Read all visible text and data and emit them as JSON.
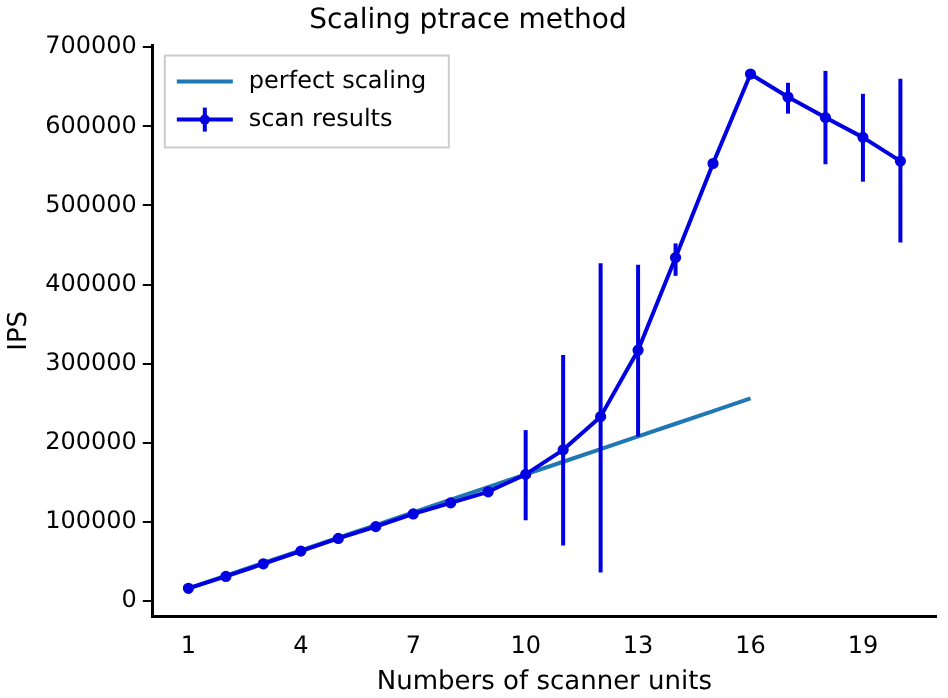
{
  "chart_data": {
    "type": "line",
    "title": "Scaling ptrace method",
    "xlabel": "Numbers of scanner units",
    "ylabel": "IPS",
    "xlim": [
      0.05,
      20.95
    ],
    "xticks": [
      1,
      4,
      7,
      10,
      13,
      16,
      19
    ],
    "ylim": [
      -19000,
      702000
    ],
    "yticks": [
      0,
      100000,
      200000,
      300000,
      400000,
      500000,
      600000,
      700000
    ],
    "grid": false,
    "legend": "top left",
    "series": [
      {
        "name": "perfect scaling",
        "color": "#1f77b4",
        "marker": "none",
        "x": [
          1,
          2,
          3,
          4,
          5,
          6,
          7,
          8,
          9,
          10,
          11,
          12,
          13,
          14,
          15,
          16
        ],
        "values": [
          16000,
          32000,
          48000,
          64000,
          80000,
          96000,
          112000,
          128000,
          144000,
          160000,
          176000,
          192000,
          208000,
          224000,
          240000,
          256000
        ]
      },
      {
        "name": "scan results",
        "color": "#0000e0",
        "marker": "circle",
        "x": [
          1,
          2,
          3,
          4,
          5,
          6,
          7,
          8,
          9,
          10,
          11,
          12,
          13,
          14,
          15,
          16,
          17,
          18,
          19,
          20
        ],
        "values": [
          16000,
          31000,
          47000,
          63000,
          79000,
          94000,
          110000,
          124000,
          138000,
          160000,
          191000,
          233000,
          317000,
          434000,
          553000,
          666000,
          637000,
          611000,
          586000,
          556000
        ],
        "errors": [
          null,
          null,
          null,
          null,
          null,
          null,
          null,
          null,
          null,
          [
            102000,
            216000
          ],
          [
            70000,
            311000
          ],
          [
            36000,
            427000
          ],
          [
            208000,
            425000
          ],
          [
            411000,
            452000
          ],
          null,
          null,
          [
            616000,
            655000
          ],
          [
            552000,
            670000
          ],
          [
            530000,
            641000
          ],
          [
            453000,
            660000
          ]
        ]
      }
    ]
  }
}
